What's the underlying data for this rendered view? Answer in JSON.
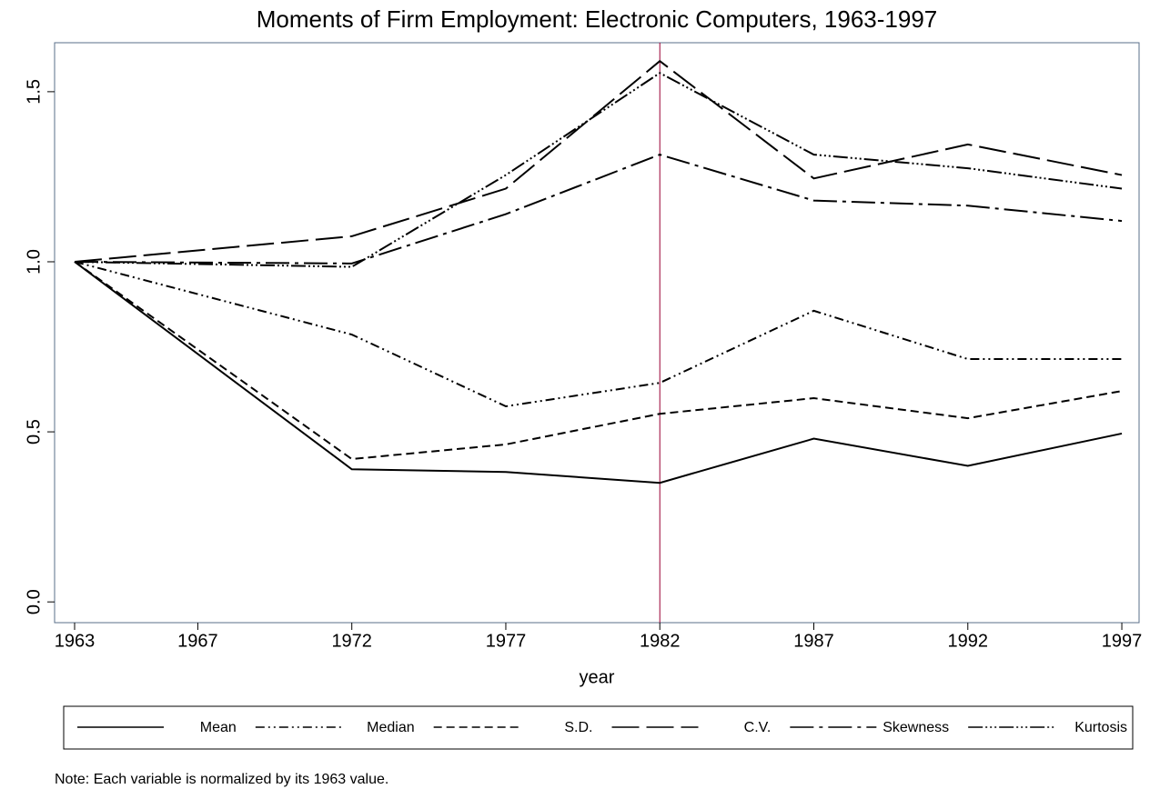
{
  "chart_data": {
    "type": "line",
    "title": "Moments of Firm Employment: Electronic Computers, 1963-1997",
    "x_label": "year",
    "note": "Note: Each variable is normalized by its 1963 value.",
    "x": [
      1963,
      1972,
      1977,
      1982,
      1987,
      1992,
      1997
    ],
    "series": [
      {
        "name": "Mean",
        "color": "#000000",
        "dash": "none",
        "values": [
          1.0,
          0.39,
          0.382,
          0.35,
          0.48,
          0.4,
          0.495
        ]
      },
      {
        "name": "Median",
        "color": "#000000",
        "dash": "10 4 2 4 2 4",
        "values": [
          1.0,
          0.786,
          0.575,
          0.644,
          0.856,
          0.714,
          0.714
        ]
      },
      {
        "name": "S.D.",
        "color": "#000000",
        "dash": "9 5",
        "values": [
          1.0,
          0.42,
          0.463,
          0.553,
          0.599,
          0.54,
          0.62
        ]
      },
      {
        "name": "C.V.",
        "color": "#000000",
        "dash": "30 8",
        "values": [
          1.0,
          1.075,
          1.215,
          1.59,
          1.245,
          1.345,
          1.255
        ]
      },
      {
        "name": "Skewness",
        "color": "#000000",
        "dash": "26 6 4 6",
        "values": [
          1.0,
          0.995,
          1.14,
          1.315,
          1.18,
          1.165,
          1.12
        ]
      },
      {
        "name": "Kurtosis",
        "color": "#000000",
        "dash": "16 3 2 3 2 3 2 3",
        "values": [
          1.0,
          0.985,
          1.255,
          1.555,
          1.315,
          1.275,
          1.215
        ]
      }
    ],
    "xlim": [
      1962.35,
      1997.56
    ],
    "xticks": [
      1963,
      1967,
      1972,
      1977,
      1982,
      1987,
      1992,
      1997
    ],
    "ylim": [
      -0.061,
      1.644
    ],
    "yticks": [
      {
        "value": 0,
        "label": "0.0"
      },
      0.5,
      {
        "value": 1,
        "label": "1.0"
      },
      1.5
    ],
    "reference_line": {
      "x": 1982,
      "color": "#990033"
    },
    "legend": "bottom"
  }
}
